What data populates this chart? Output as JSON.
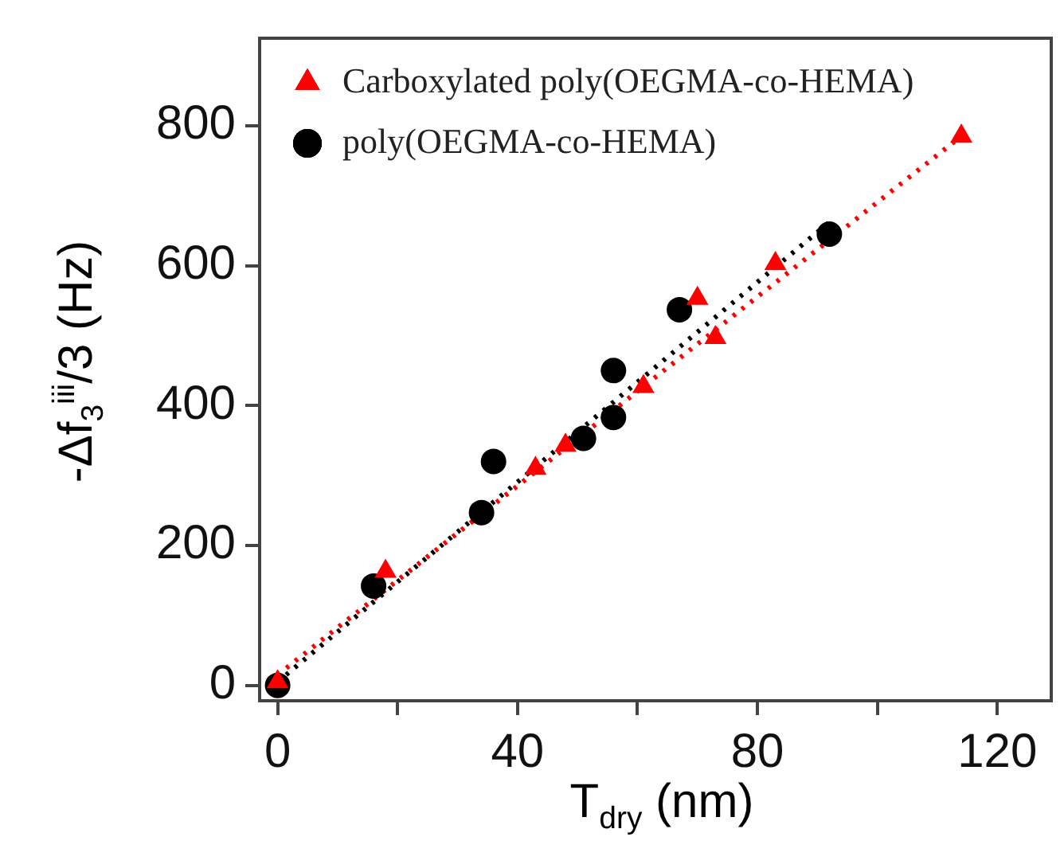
{
  "chart_data": {
    "type": "scatter",
    "xlabel": "T$_{dry}$ (nm)",
    "ylabel": "-Δf$_{3}$$^{iii}$/3 (Hz)",
    "xlim": [
      -3,
      129
    ],
    "xticks": [
      0,
      {
        "value": 20,
        "label": null
      },
      40,
      {
        "value": 60,
        "label": null
      },
      80,
      {
        "value": 100,
        "label": null
      },
      120
    ],
    "ylim": [
      -22,
      925
    ],
    "yticks": [
      0,
      200,
      400,
      600,
      800
    ],
    "grid": false,
    "legend": "top left",
    "series": [
      {
        "name": "Carboxylated poly(OEGMA-co-HEMA)",
        "marker": "triangle",
        "color": "#ff0000",
        "x": [
          0,
          18,
          43,
          48,
          61,
          70,
          73,
          83,
          114
        ],
        "values": [
          5,
          163,
          310,
          343,
          427,
          553,
          497,
          603,
          785
        ]
      },
      {
        "name": "poly(OEGMA-co-HEMA)",
        "marker": "circle",
        "color": "#000000",
        "x": [
          0,
          16,
          34,
          36,
          51,
          56,
          56,
          67,
          92
        ],
        "values": [
          0,
          142,
          247,
          320,
          353,
          383,
          450,
          537,
          645
        ]
      },
      {
        "type": "line",
        "color": "#ff0000",
        "line_style": "dotted",
        "marker": "none",
        "x": [
          0,
          114
        ],
        "values": [
          15,
          785
        ]
      },
      {
        "type": "line",
        "color": "#000000",
        "line_style": "dotted",
        "marker": "none",
        "x": [
          0,
          92
        ],
        "values": [
          5,
          662
        ]
      }
    ]
  }
}
